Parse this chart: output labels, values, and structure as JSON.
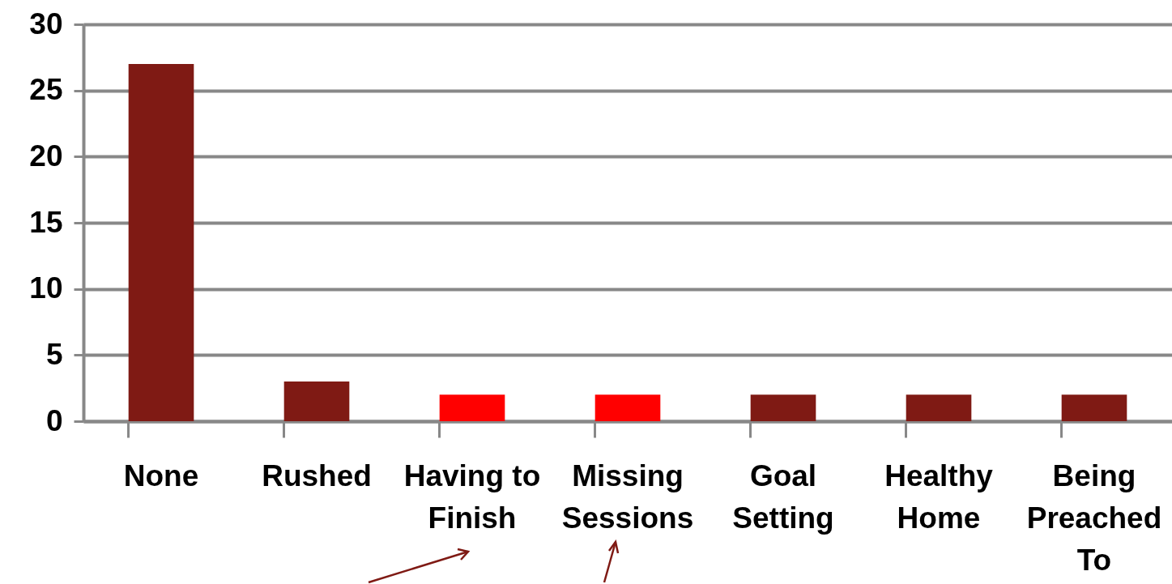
{
  "chart_data": {
    "type": "bar",
    "categories": [
      "None",
      "Rushed",
      "Having to Finish",
      "Missing Sessions",
      "Goal Setting",
      "Healthy Home",
      "Being Preached To"
    ],
    "values": [
      27,
      3,
      2,
      2,
      2,
      2,
      2
    ],
    "colors": [
      "#7f1a14",
      "#7f1a14",
      "#ff0000",
      "#ff0000",
      "#7f1a14",
      "#7f1a14",
      "#7f1a14"
    ],
    "ylim": [
      0,
      30
    ],
    "yticks": [
      0,
      5,
      10,
      15,
      20,
      25,
      30
    ],
    "grid": "y"
  }
}
